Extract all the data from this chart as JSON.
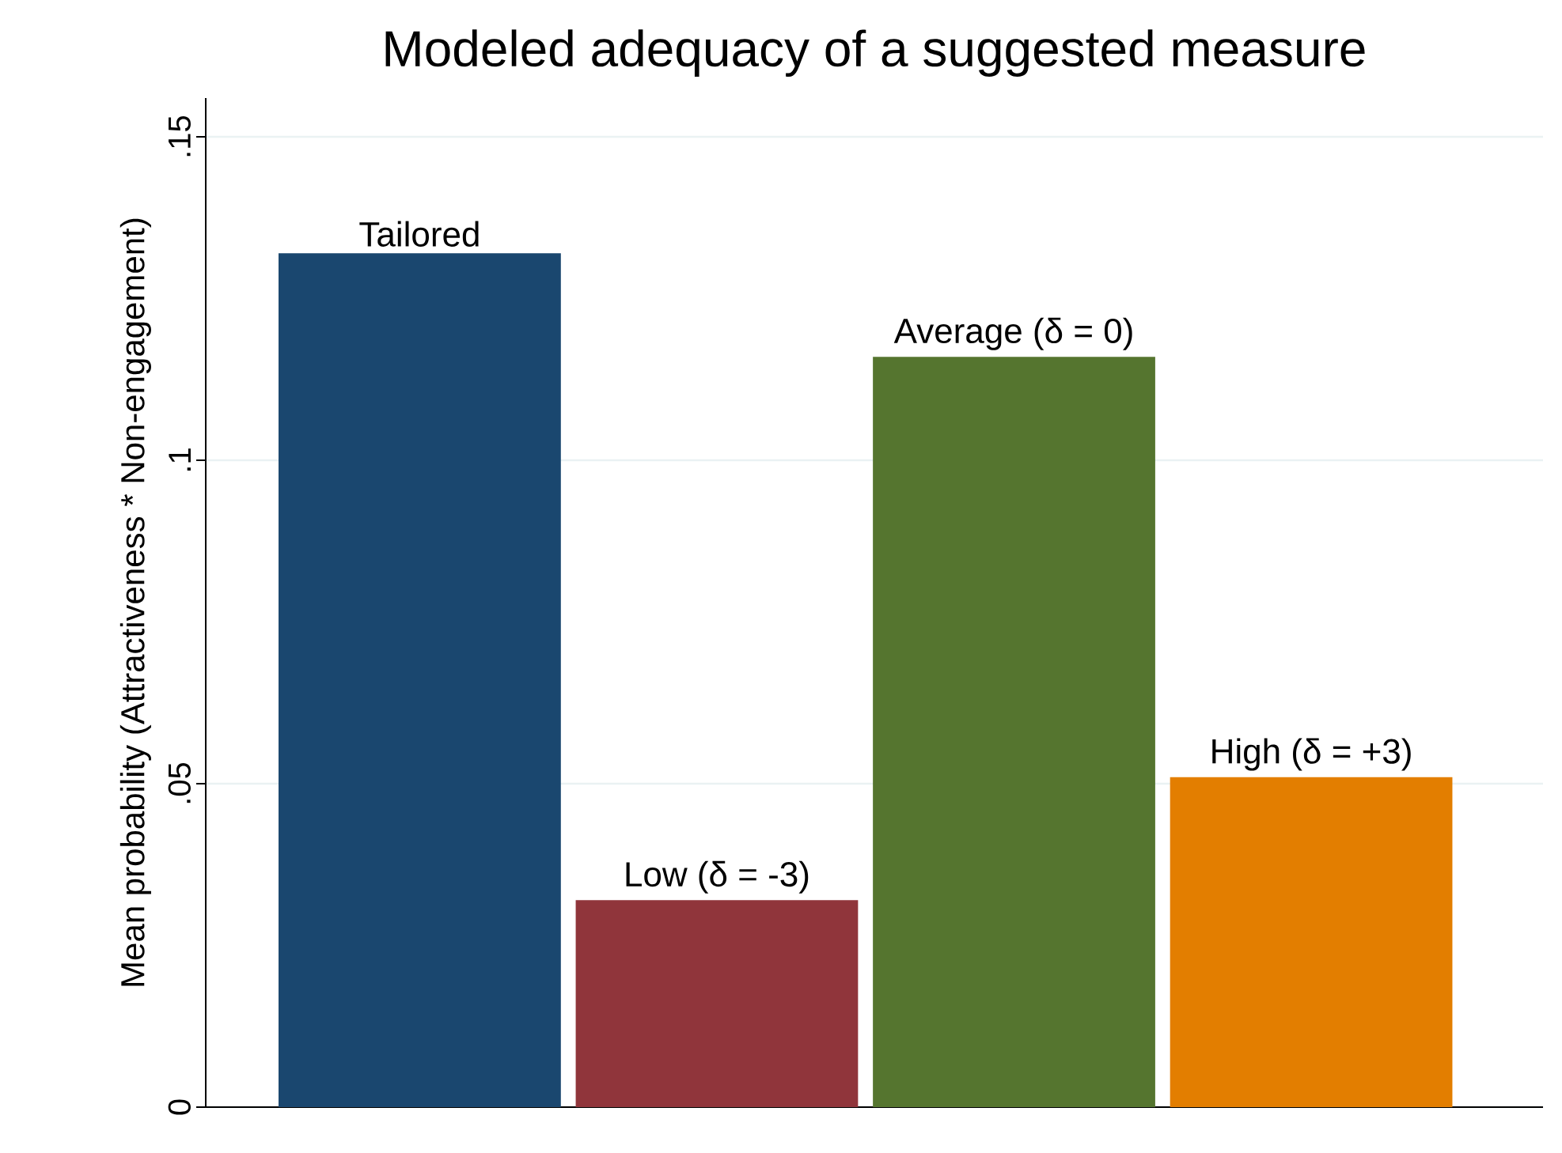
{
  "chart_data": {
    "type": "bar",
    "title": "Modeled adequacy of a suggested measure",
    "ylabel": "Mean probability (Attractiveness * Non-engagement)",
    "categories": [
      "Tailored",
      "Low (δ = -3)",
      "Average (δ = 0)",
      "High (δ = +3)"
    ],
    "values": [
      0.132,
      0.032,
      0.116,
      0.051
    ],
    "colors": [
      "#1a476f",
      "#90353b",
      "#55752f",
      "#e37e00"
    ],
    "ylim": [
      0,
      0.156
    ],
    "yticks": [
      0,
      {
        "value": 0.05,
        "label": ".05"
      },
      {
        "value": 0.1,
        "label": ".1"
      },
      {
        "value": 0.15,
        "label": ".15"
      }
    ],
    "grid": "y",
    "tick_labels": "y"
  }
}
